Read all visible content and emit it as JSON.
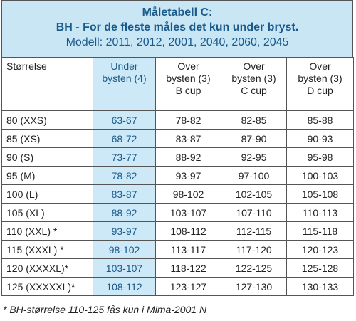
{
  "header": {
    "title": "Måletabell C:",
    "subtitle": "BH - For de fleste måles det kun under bryst.",
    "models": "Modell: 2011, 2012, 2001, 2040, 2060, 2045"
  },
  "table": {
    "columns": [
      "Størrelse",
      "Under\nbysten (4)",
      "Over\nbysten (3)\nB cup",
      "Over\nbysten (3)\nC cup",
      "Over\nbysten (3)\nD cup"
    ],
    "rows": [
      [
        "80 (XXS)",
        "63-67",
        "78-82",
        "82-85",
        "85-88"
      ],
      [
        "85 (XS)",
        "68-72",
        "83-87",
        "87-90",
        "90-93"
      ],
      [
        "90 (S)",
        "73-77",
        "88-92",
        "92-95",
        "95-98"
      ],
      [
        "95 (M)",
        "78-82",
        "93-97",
        "97-100",
        "100-103"
      ],
      [
        "100 (L)",
        "83-87",
        "98-102",
        "102-105",
        "105-108"
      ],
      [
        "105 (XL)",
        "88-92",
        "103-107",
        "107-110",
        "110-113"
      ],
      [
        "110 (XXL) *",
        "93-97",
        "108-112",
        "112-115",
        "115-118"
      ],
      [
        "115 (XXXL) *",
        "98-102",
        "113-117",
        "117-120",
        "120-123"
      ],
      [
        "120 (XXXXL)*",
        "103-107",
        "118-122",
        "122-125",
        "125-128"
      ],
      [
        "125 (XXXXXL)*",
        "108-112",
        "123-127",
        "127-130",
        "130-133"
      ]
    ]
  },
  "footnote": "* BH-størrelse 110-125  fås kun i Mima-2001 N"
}
